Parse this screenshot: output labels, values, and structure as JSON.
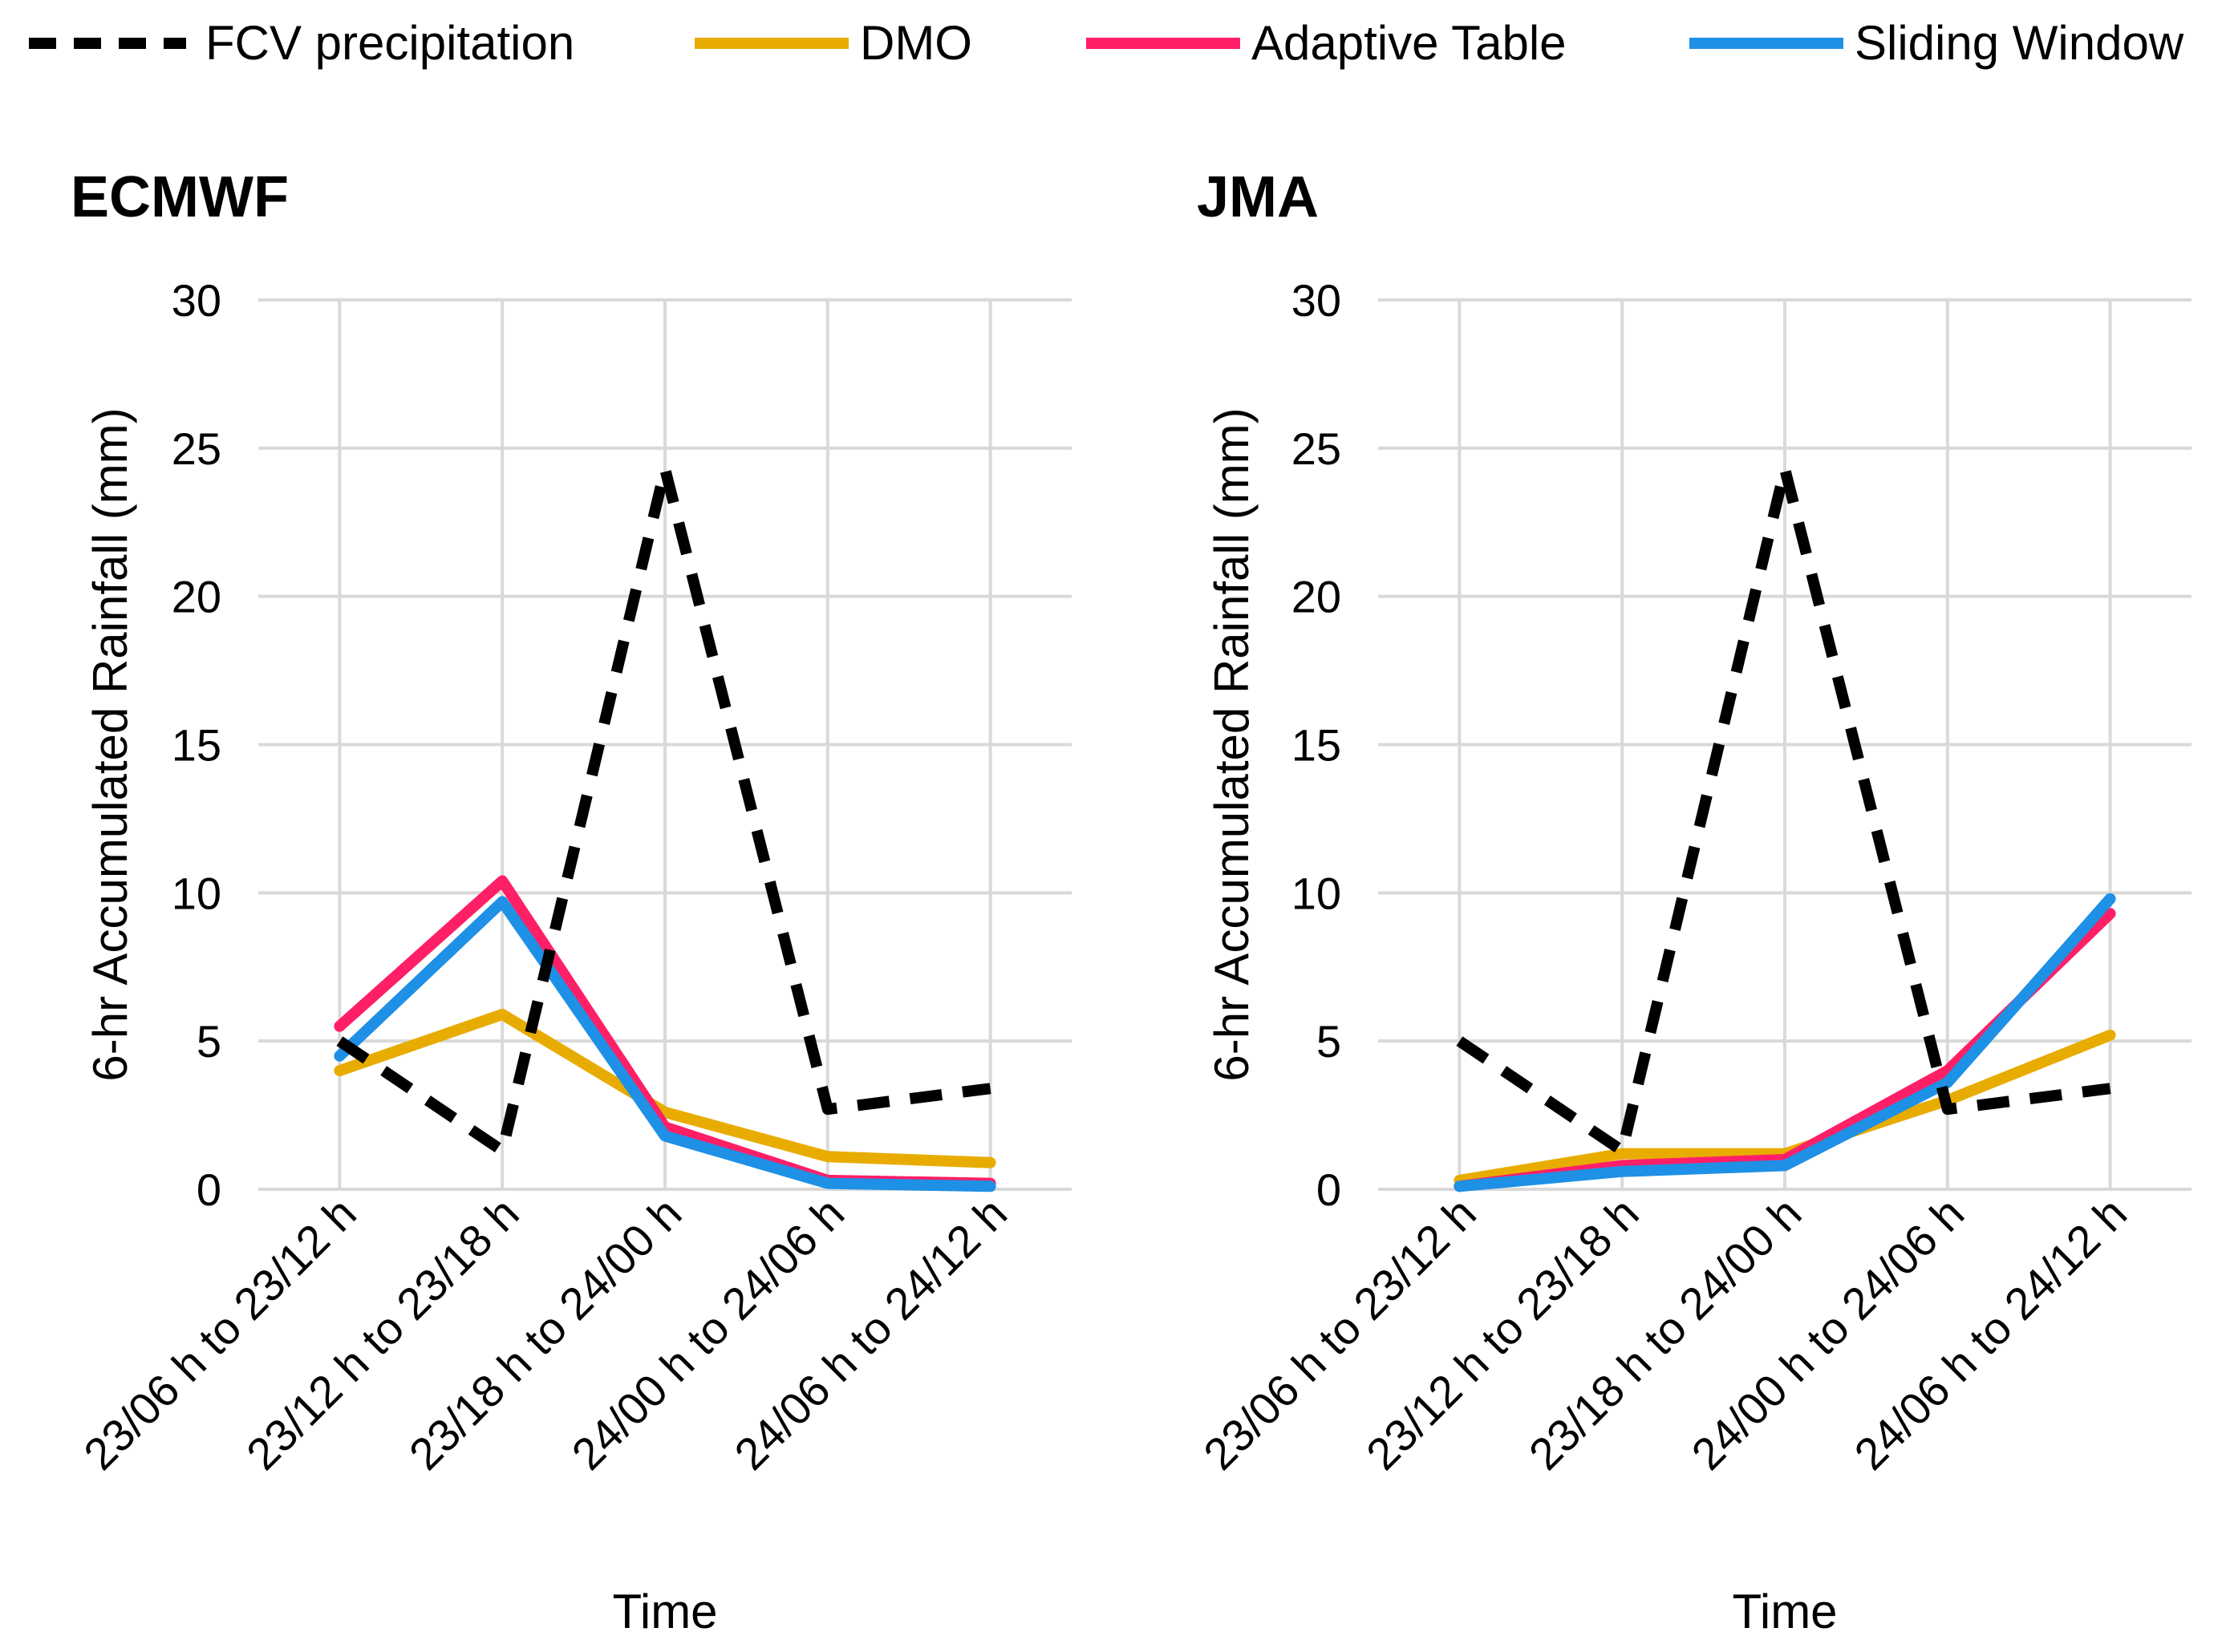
{
  "legend": [
    {
      "label": "FCV precipitation",
      "color": "#000000",
      "dashed": true
    },
    {
      "label": "DMO",
      "color": "#e8ac00",
      "dashed": false
    },
    {
      "label": "Adaptive Table",
      "color": "#ff1f67",
      "dashed": false
    },
    {
      "label": "Sliding Window",
      "color": "#1e90e6",
      "dashed": false
    }
  ],
  "chart_data": [
    {
      "type": "line",
      "title": "ECMWF",
      "xlabel": "Time",
      "ylabel": "6-hr Accumulated Rainfall (mm)",
      "ylim": [
        0,
        30
      ],
      "yticks": [
        0,
        5,
        10,
        15,
        20,
        25,
        30
      ],
      "grid": true,
      "categories": [
        "23/06 h to 23/12 h",
        "23/12 h to 23/18 h",
        "23/18 h to 24/00 h",
        "24/00 h to 24/06 h",
        "24/06 h to 24/12 h"
      ],
      "series": [
        {
          "name": "DMO",
          "values": [
            4.0,
            5.9,
            2.6,
            1.1,
            0.9
          ]
        },
        {
          "name": "Adaptive Table",
          "values": [
            5.5,
            10.4,
            2.1,
            0.3,
            0.2
          ]
        },
        {
          "name": "Sliding Window",
          "values": [
            4.5,
            9.7,
            1.8,
            0.2,
            0.1
          ]
        },
        {
          "name": "FCV precipitation",
          "values": [
            5.0,
            1.3,
            24.3,
            2.7,
            3.4
          ]
        }
      ]
    },
    {
      "type": "line",
      "title": "JMA",
      "xlabel": "Time",
      "ylabel": "6-hr Accumulated Rainfall (mm)",
      "ylim": [
        0,
        30
      ],
      "yticks": [
        0,
        5,
        10,
        15,
        20,
        25,
        30
      ],
      "grid": true,
      "categories": [
        "23/06 h to 23/12 h",
        "23/12 h to 23/18 h",
        "23/18 h to 24/00 h",
        "24/00 h to 24/06 h",
        "24/06 h to 24/12 h"
      ],
      "series": [
        {
          "name": "DMO",
          "values": [
            0.3,
            1.2,
            1.2,
            3.0,
            5.2
          ]
        },
        {
          "name": "Adaptive Table",
          "values": [
            0.1,
            0.8,
            1.0,
            4.0,
            9.3
          ]
        },
        {
          "name": "Sliding Window",
          "values": [
            0.1,
            0.6,
            0.8,
            3.6,
            9.8
          ]
        },
        {
          "name": "FCV precipitation",
          "values": [
            5.0,
            1.3,
            24.3,
            2.7,
            3.4
          ]
        }
      ]
    }
  ]
}
